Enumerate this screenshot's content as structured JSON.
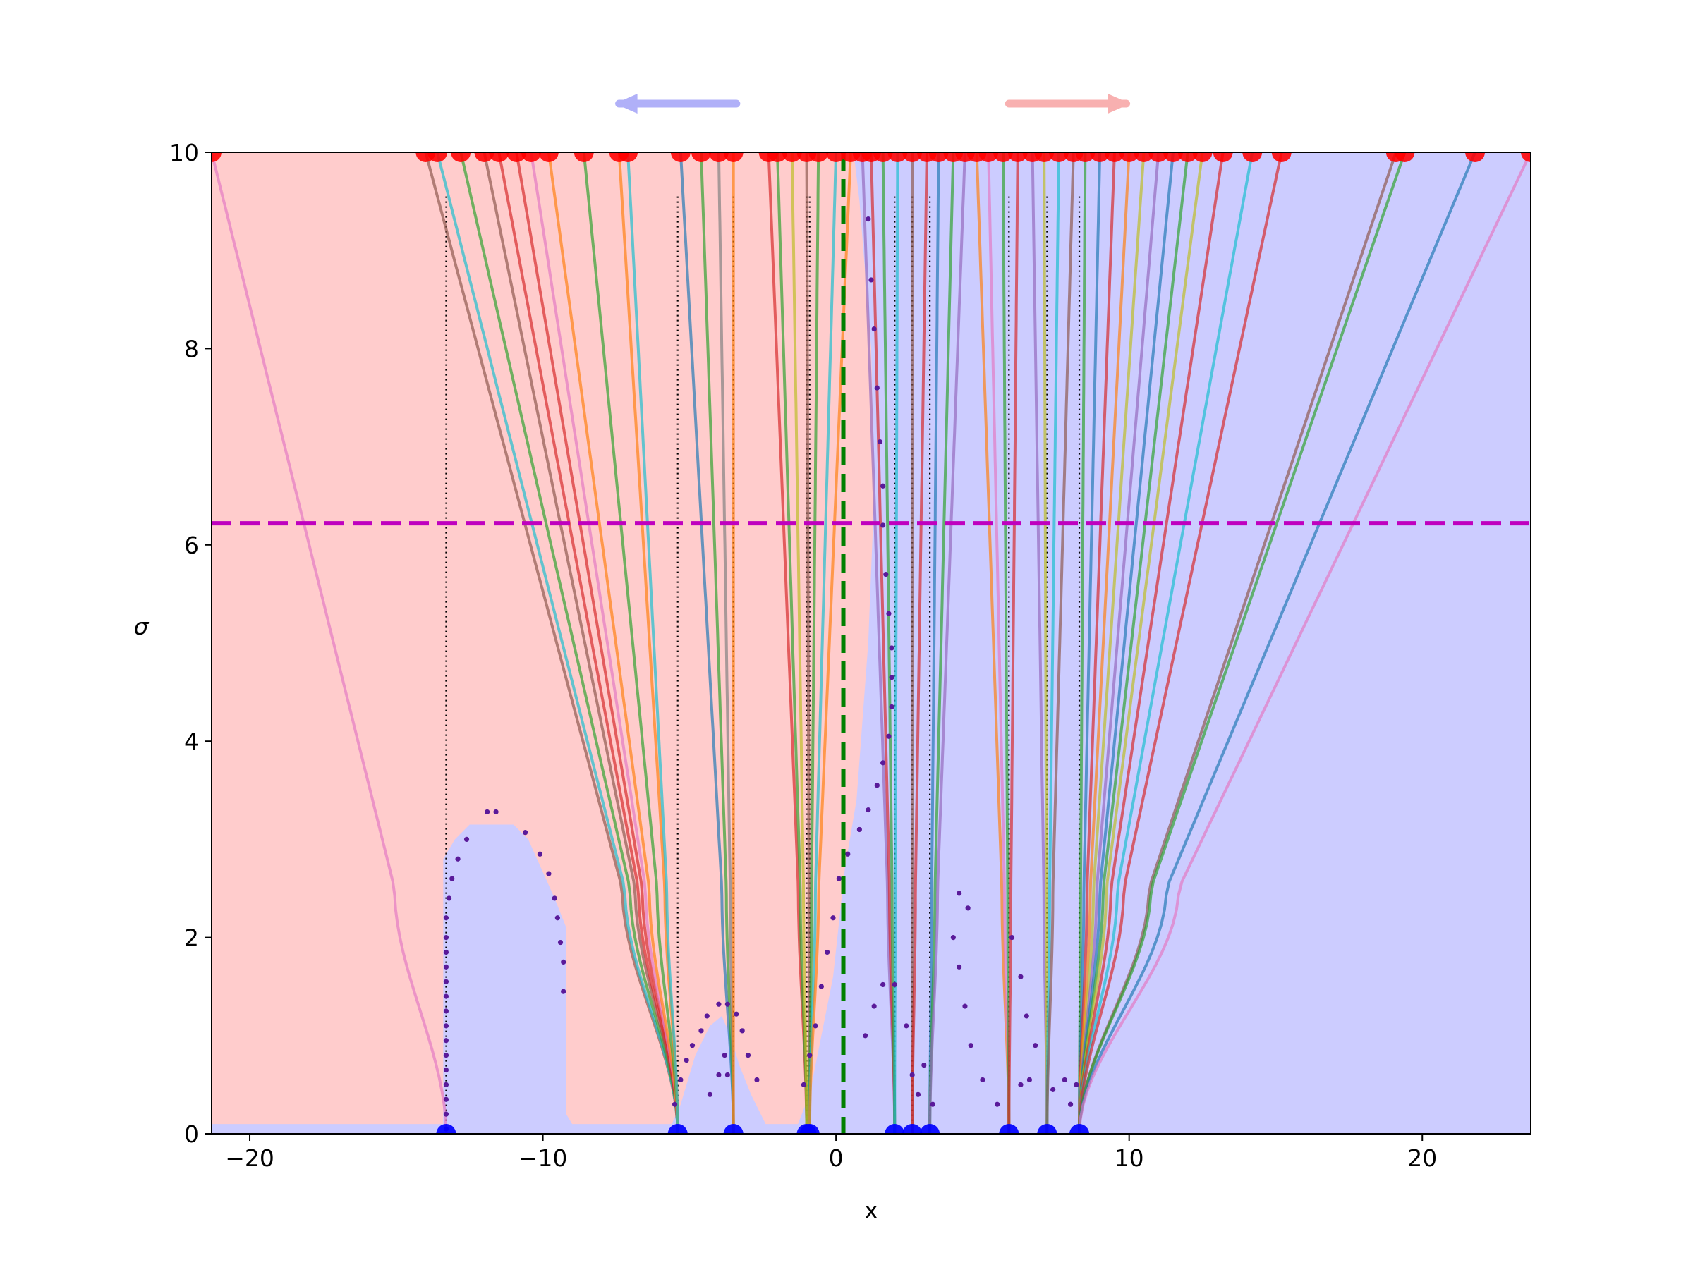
{
  "chart_data": {
    "type": "line",
    "title": "",
    "xlabel": "x",
    "ylabel": "σ",
    "xlim": [
      -21.3,
      23.7
    ],
    "ylim": [
      0,
      10
    ],
    "x_ticks": [
      -20,
      -10,
      0,
      10,
      20
    ],
    "y_ticks": [
      0,
      2,
      4,
      6,
      8,
      10
    ],
    "x_tick_labels": [
      "−20",
      "−10",
      "0",
      "10",
      "20"
    ],
    "y_tick_labels": [
      "0",
      "2",
      "4",
      "6",
      "8",
      "10"
    ],
    "grid": false,
    "legend": "none",
    "colors": {
      "left_region": "#ffcccc",
      "right_region": "#ccccff",
      "start_points": "#ff0000",
      "end_points": "#0000ff",
      "boundary_points": "#5a1a9a",
      "threshold_line": "#bf00bf",
      "center_line": "#008000",
      "left_arrow": "#b0b0f8",
      "right_arrow": "#f8b0b0"
    },
    "threshold_sigma": 6.22,
    "center_x": 0.25,
    "top_arrows": [
      {
        "direction": "left",
        "from_x": -3.4,
        "to_x": -7.4,
        "color": "#b0b0f8"
      },
      {
        "direction": "right",
        "from_x": 5.9,
        "to_x": 9.9,
        "color": "#f8b0b0"
      }
    ],
    "attractors": [
      -13.3,
      -5.4,
      -3.5,
      -1.0,
      -0.9,
      2.0,
      2.6,
      3.2,
      5.9,
      7.2,
      8.3
    ],
    "trajectory_palette": [
      "#1f77b4",
      "#ff7f0e",
      "#2ca02c",
      "#d62728",
      "#9467bd",
      "#8c564b",
      "#e377c2",
      "#7f7f7f",
      "#bcbd22",
      "#17becf"
    ],
    "trajectories": [
      {
        "start": -21.3,
        "end": -13.3,
        "color": "#e377c2"
      },
      {
        "start": -14.0,
        "end": -5.4,
        "color": "#8c564b"
      },
      {
        "start": -13.6,
        "end": -5.4,
        "color": "#17becf"
      },
      {
        "start": -12.8,
        "end": -5.4,
        "color": "#2ca02c"
      },
      {
        "start": -12.0,
        "end": -5.4,
        "color": "#8c564b"
      },
      {
        "start": -11.5,
        "end": -5.4,
        "color": "#d62728"
      },
      {
        "start": -10.9,
        "end": -5.4,
        "color": "#d62728"
      },
      {
        "start": -10.4,
        "end": -5.4,
        "color": "#e377c2"
      },
      {
        "start": -9.8,
        "end": -5.4,
        "color": "#ff7f0e"
      },
      {
        "start": -8.6,
        "end": -5.4,
        "color": "#2ca02c"
      },
      {
        "start": -7.4,
        "end": -5.4,
        "color": "#ff7f0e"
      },
      {
        "start": -7.1,
        "end": -5.4,
        "color": "#17becf"
      },
      {
        "start": -5.3,
        "end": -3.5,
        "color": "#1f77b4"
      },
      {
        "start": -4.6,
        "end": -3.5,
        "color": "#2ca02c"
      },
      {
        "start": -4.0,
        "end": -3.5,
        "color": "#7f7f7f"
      },
      {
        "start": -3.5,
        "end": -3.5,
        "color": "#ff7f0e"
      },
      {
        "start": -2.3,
        "end": -1.0,
        "color": "#d62728"
      },
      {
        "start": -2.0,
        "end": -1.0,
        "color": "#2ca02c"
      },
      {
        "start": -1.5,
        "end": -1.0,
        "color": "#bcbd22"
      },
      {
        "start": -1.0,
        "end": -0.9,
        "color": "#8c564b"
      },
      {
        "start": -0.6,
        "end": -0.9,
        "color": "#2ca02c"
      },
      {
        "start": 0.0,
        "end": -0.9,
        "color": "#17becf"
      },
      {
        "start": 0.5,
        "end": -0.9,
        "color": "#ff7f0e"
      },
      {
        "start": 0.9,
        "end": 2.0,
        "color": "#9467bd"
      },
      {
        "start": 1.2,
        "end": 2.0,
        "color": "#d62728"
      },
      {
        "start": 1.6,
        "end": 2.0,
        "color": "#2ca02c"
      },
      {
        "start": 2.1,
        "end": 2.0,
        "color": "#17becf"
      },
      {
        "start": 2.6,
        "end": 2.6,
        "color": "#8c564b"
      },
      {
        "start": 3.1,
        "end": 2.6,
        "color": "#d62728"
      },
      {
        "start": 3.5,
        "end": 3.2,
        "color": "#1f77b4"
      },
      {
        "start": 4.0,
        "end": 3.2,
        "color": "#2ca02c"
      },
      {
        "start": 4.4,
        "end": 3.2,
        "color": "#9467bd"
      },
      {
        "start": 4.8,
        "end": 5.9,
        "color": "#ff7f0e"
      },
      {
        "start": 5.2,
        "end": 5.9,
        "color": "#e377c2"
      },
      {
        "start": 5.7,
        "end": 5.9,
        "color": "#2ca02c"
      },
      {
        "start": 6.2,
        "end": 5.9,
        "color": "#d62728"
      },
      {
        "start": 6.7,
        "end": 7.2,
        "color": "#9467bd"
      },
      {
        "start": 7.1,
        "end": 7.2,
        "color": "#bcbd22"
      },
      {
        "start": 7.6,
        "end": 7.2,
        "color": "#17becf"
      },
      {
        "start": 8.1,
        "end": 7.2,
        "color": "#8c564b"
      },
      {
        "start": 8.5,
        "end": 8.3,
        "color": "#2ca02c"
      },
      {
        "start": 9.0,
        "end": 8.3,
        "color": "#1f77b4"
      },
      {
        "start": 9.5,
        "end": 8.3,
        "color": "#d62728"
      },
      {
        "start": 10.0,
        "end": 8.3,
        "color": "#ff7f0e"
      },
      {
        "start": 10.5,
        "end": 8.3,
        "color": "#bcbd22"
      },
      {
        "start": 11.0,
        "end": 8.3,
        "color": "#9467bd"
      },
      {
        "start": 11.5,
        "end": 8.3,
        "color": "#1f77b4"
      },
      {
        "start": 12.0,
        "end": 8.3,
        "color": "#2ca02c"
      },
      {
        "start": 12.5,
        "end": 8.3,
        "color": "#bcbd22"
      },
      {
        "start": 13.2,
        "end": 8.3,
        "color": "#d62728"
      },
      {
        "start": 14.2,
        "end": 8.3,
        "color": "#17becf"
      },
      {
        "start": 15.2,
        "end": 8.3,
        "color": "#d62728"
      },
      {
        "start": 19.1,
        "end": 8.3,
        "color": "#8c564b"
      },
      {
        "start": 19.4,
        "end": 8.3,
        "color": "#2ca02c"
      },
      {
        "start": 21.8,
        "end": 8.3,
        "color": "#1f77b4"
      },
      {
        "start": 23.7,
        "end": 8.3,
        "color": "#e377c2"
      }
    ],
    "pink_region": [
      [
        -21.3,
        0.1
      ],
      [
        -13.4,
        0.1
      ],
      [
        -13.4,
        2.8
      ],
      [
        -13.0,
        3.0
      ],
      [
        -12.5,
        3.15
      ],
      [
        -11.0,
        3.15
      ],
      [
        -10.5,
        3.0
      ],
      [
        -9.6,
        2.4
      ],
      [
        -9.2,
        2.1
      ],
      [
        -9.2,
        0.2
      ],
      [
        -9.0,
        0.1
      ],
      [
        -5.6,
        0.1
      ],
      [
        -5.3,
        0.3
      ],
      [
        -4.8,
        0.8
      ],
      [
        -4.3,
        1.1
      ],
      [
        -3.9,
        1.2
      ],
      [
        -3.6,
        1.0
      ],
      [
        -3.3,
        0.7
      ],
      [
        -2.9,
        0.4
      ],
      [
        -2.4,
        0.1
      ],
      [
        -1.3,
        0.1
      ],
      [
        -0.9,
        0.4
      ],
      [
        -0.5,
        1.0
      ],
      [
        -0.1,
        1.6
      ],
      [
        0.3,
        2.7
      ],
      [
        0.7,
        3.4
      ],
      [
        1.1,
        5.0
      ],
      [
        1.3,
        6.5
      ],
      [
        1.2,
        8.0
      ],
      [
        0.8,
        9.5
      ],
      [
        0.6,
        10
      ],
      [
        -21.3,
        10
      ]
    ],
    "boundary_points": [
      {
        "x": -13.3,
        "y": 0.05
      },
      {
        "x": -13.3,
        "y": 0.2
      },
      {
        "x": -13.3,
        "y": 0.35
      },
      {
        "x": -13.3,
        "y": 0.5
      },
      {
        "x": -13.3,
        "y": 0.65
      },
      {
        "x": -13.3,
        "y": 0.8
      },
      {
        "x": -13.3,
        "y": 0.95
      },
      {
        "x": -13.3,
        "y": 1.1
      },
      {
        "x": -13.3,
        "y": 1.25
      },
      {
        "x": -13.3,
        "y": 1.4
      },
      {
        "x": -13.3,
        "y": 1.55
      },
      {
        "x": -13.3,
        "y": 1.7
      },
      {
        "x": -13.3,
        "y": 1.85
      },
      {
        "x": -13.3,
        "y": 2.0
      },
      {
        "x": -13.3,
        "y": 2.2
      },
      {
        "x": -13.2,
        "y": 2.4
      },
      {
        "x": -13.1,
        "y": 2.6
      },
      {
        "x": -12.9,
        "y": 2.8
      },
      {
        "x": -12.6,
        "y": 3.0
      },
      {
        "x": -11.9,
        "y": 3.28
      },
      {
        "x": -11.6,
        "y": 3.28
      },
      {
        "x": -10.6,
        "y": 3.07
      },
      {
        "x": -10.1,
        "y": 2.85
      },
      {
        "x": -9.8,
        "y": 2.65
      },
      {
        "x": -9.6,
        "y": 2.4
      },
      {
        "x": -9.5,
        "y": 2.2
      },
      {
        "x": -9.4,
        "y": 1.95
      },
      {
        "x": -9.3,
        "y": 1.75
      },
      {
        "x": -9.3,
        "y": 1.45
      },
      {
        "x": -5.5,
        "y": 0.3
      },
      {
        "x": -5.3,
        "y": 0.55
      },
      {
        "x": -5.1,
        "y": 0.75
      },
      {
        "x": -4.9,
        "y": 0.9
      },
      {
        "x": -4.6,
        "y": 1.05
      },
      {
        "x": -4.4,
        "y": 1.2
      },
      {
        "x": -4.0,
        "y": 1.32
      },
      {
        "x": -3.7,
        "y": 1.32
      },
      {
        "x": -3.4,
        "y": 1.22
      },
      {
        "x": -3.2,
        "y": 1.05
      },
      {
        "x": -3.0,
        "y": 0.8
      },
      {
        "x": -2.7,
        "y": 0.55
      },
      {
        "x": -4.3,
        "y": 0.4
      },
      {
        "x": -4.0,
        "y": 0.6
      },
      {
        "x": -3.8,
        "y": 0.8
      },
      {
        "x": -3.7,
        "y": 0.6
      },
      {
        "x": -1.1,
        "y": 0.5
      },
      {
        "x": -0.9,
        "y": 0.8
      },
      {
        "x": -0.7,
        "y": 1.1
      },
      {
        "x": -0.5,
        "y": 1.5
      },
      {
        "x": -0.3,
        "y": 1.85
      },
      {
        "x": -0.1,
        "y": 2.2
      },
      {
        "x": 0.1,
        "y": 2.6
      },
      {
        "x": 0.4,
        "y": 2.85
      },
      {
        "x": 0.8,
        "y": 3.1
      },
      {
        "x": 1.1,
        "y": 3.3
      },
      {
        "x": 1.4,
        "y": 3.55
      },
      {
        "x": 1.6,
        "y": 3.78
      },
      {
        "x": 1.8,
        "y": 4.05
      },
      {
        "x": 1.9,
        "y": 4.35
      },
      {
        "x": 1.9,
        "y": 4.65
      },
      {
        "x": 1.9,
        "y": 4.95
      },
      {
        "x": 1.8,
        "y": 5.3
      },
      {
        "x": 1.7,
        "y": 5.7
      },
      {
        "x": 1.6,
        "y": 6.2
      },
      {
        "x": 1.6,
        "y": 6.6
      },
      {
        "x": 1.5,
        "y": 7.05
      },
      {
        "x": 1.4,
        "y": 7.6
      },
      {
        "x": 1.3,
        "y": 8.2
      },
      {
        "x": 1.2,
        "y": 8.7
      },
      {
        "x": 1.1,
        "y": 9.32
      },
      {
        "x": 1.0,
        "y": 1.0
      },
      {
        "x": 1.3,
        "y": 1.3
      },
      {
        "x": 1.6,
        "y": 1.52
      },
      {
        "x": 2.0,
        "y": 1.52
      },
      {
        "x": 2.4,
        "y": 1.1
      },
      {
        "x": 2.6,
        "y": 0.6
      },
      {
        "x": 2.8,
        "y": 0.4
      },
      {
        "x": 3.0,
        "y": 0.7
      },
      {
        "x": 3.3,
        "y": 0.3
      },
      {
        "x": 4.0,
        "y": 2.0
      },
      {
        "x": 4.2,
        "y": 2.45
      },
      {
        "x": 4.5,
        "y": 2.3
      },
      {
        "x": 4.2,
        "y": 1.7
      },
      {
        "x": 4.4,
        "y": 1.3
      },
      {
        "x": 4.6,
        "y": 0.9
      },
      {
        "x": 5.0,
        "y": 0.55
      },
      {
        "x": 5.5,
        "y": 0.3
      },
      {
        "x": 6.0,
        "y": 2.0
      },
      {
        "x": 6.3,
        "y": 1.6
      },
      {
        "x": 6.5,
        "y": 1.2
      },
      {
        "x": 6.8,
        "y": 0.9
      },
      {
        "x": 6.3,
        "y": 0.5
      },
      {
        "x": 6.6,
        "y": 0.55
      },
      {
        "x": 7.4,
        "y": 0.45
      },
      {
        "x": 7.8,
        "y": 0.55
      },
      {
        "x": 8.2,
        "y": 0.5
      },
      {
        "x": 8.0,
        "y": 0.3
      }
    ]
  }
}
